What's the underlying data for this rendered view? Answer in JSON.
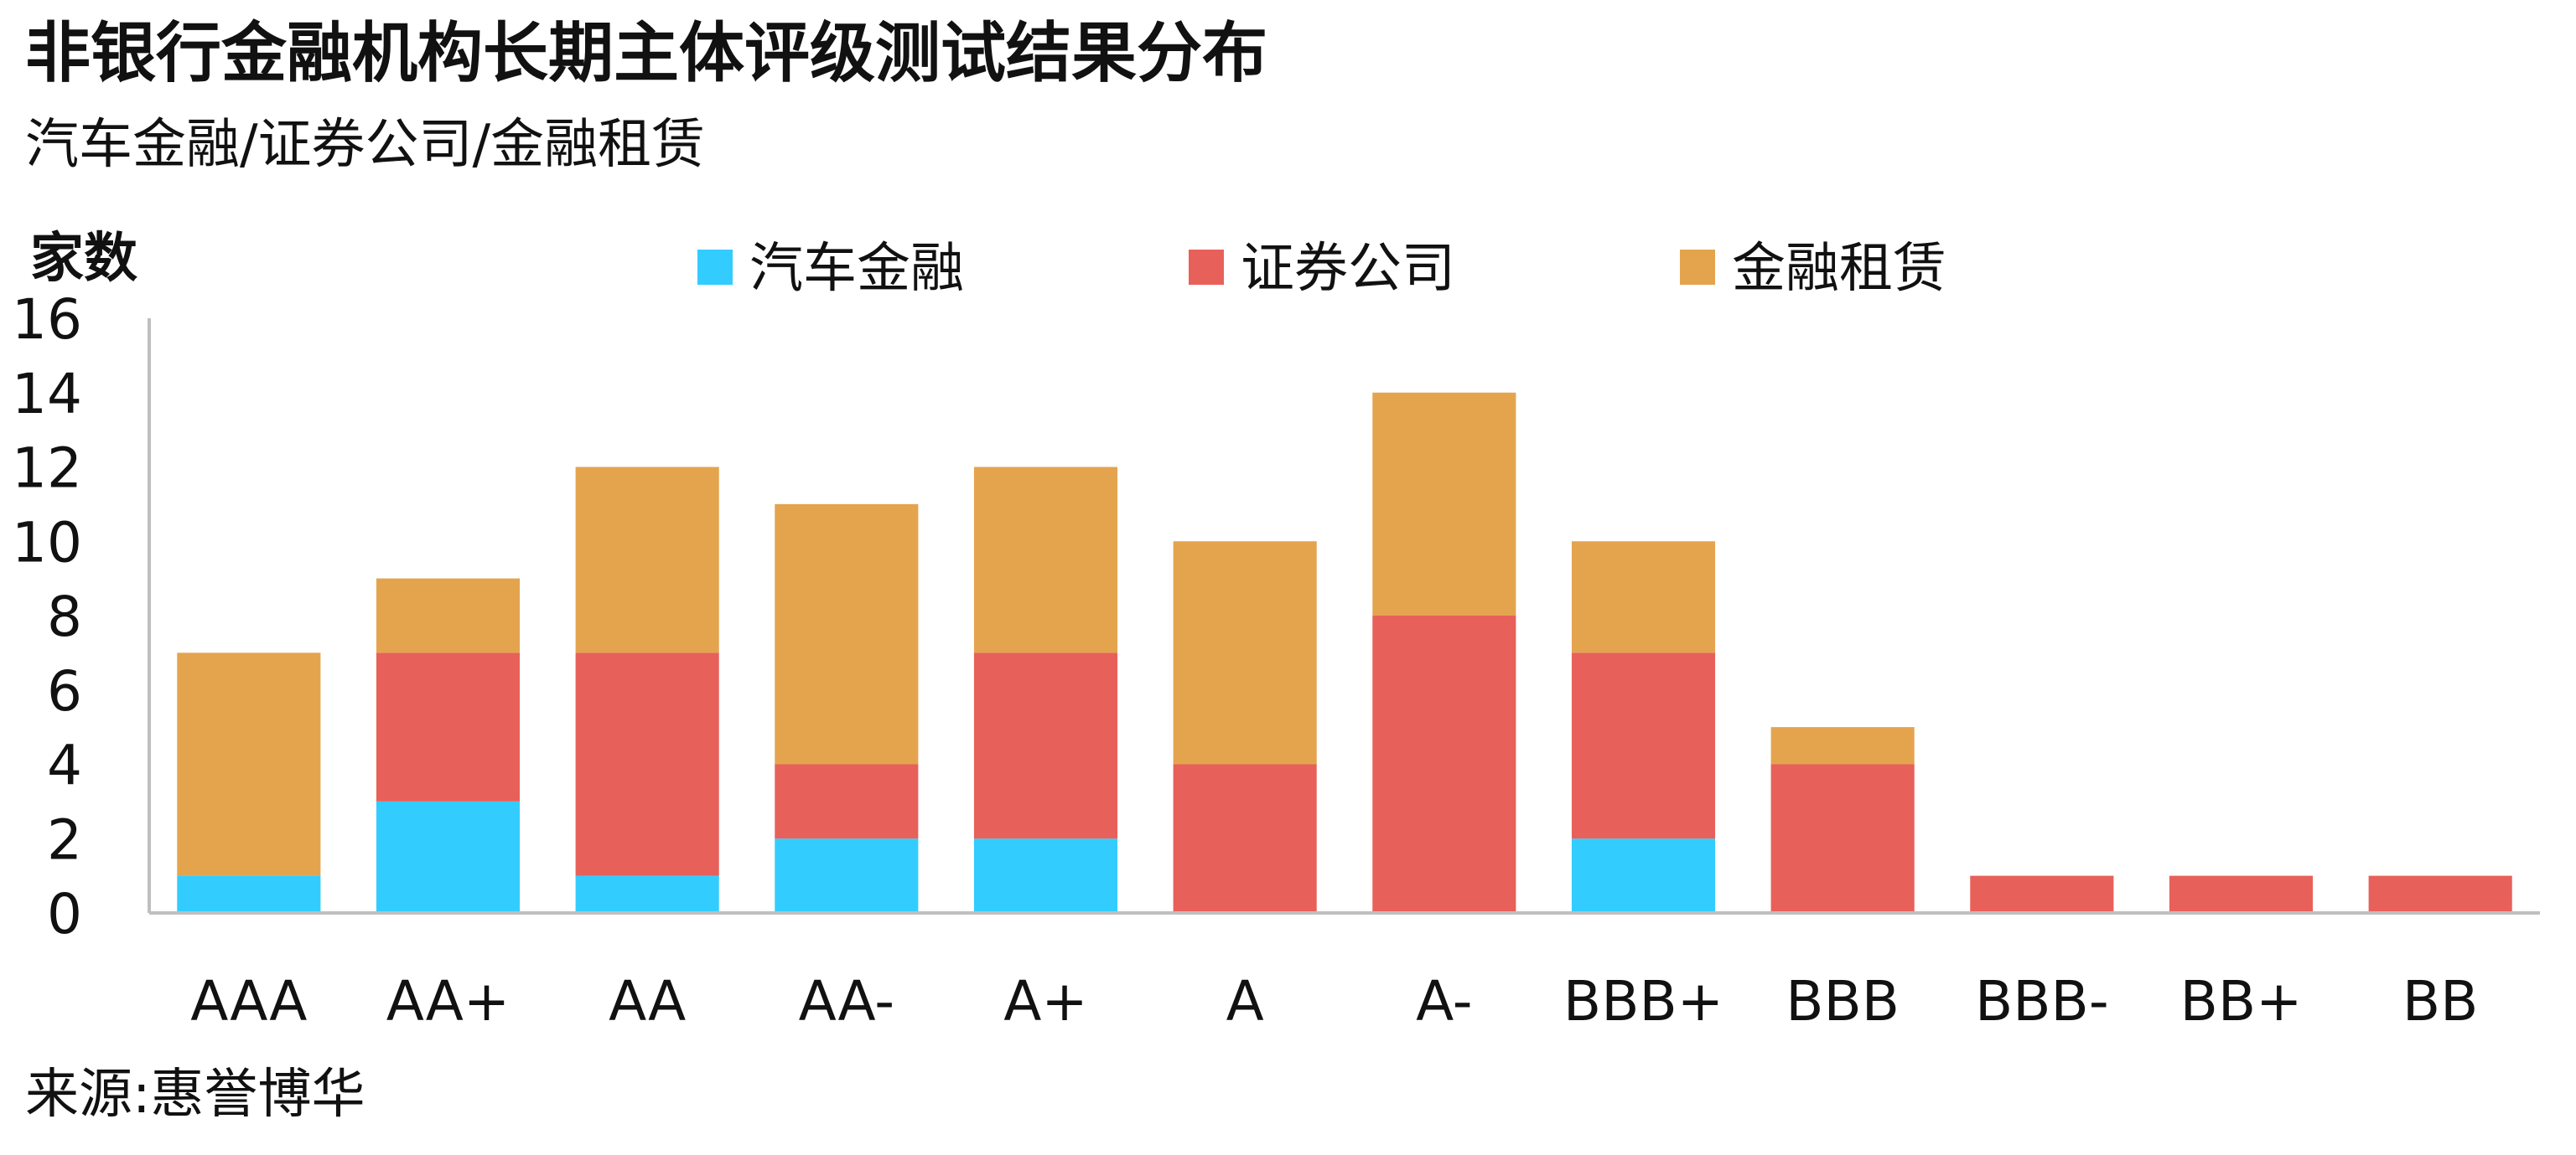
{
  "title": "非银行金融机构长期主体评级测试结果分布",
  "subtitle": "汽车金融/证券公司/金融租赁",
  "source": "来源:惠誉博华",
  "chart_data": {
    "type": "bar",
    "stacked": true,
    "ylabel": "家数",
    "ylim": [
      0,
      16
    ],
    "yticks": [
      0,
      2,
      4,
      6,
      8,
      10,
      12,
      14,
      16
    ],
    "grid": false,
    "legend_position": "top-center",
    "categories": [
      "AAA",
      "AA+",
      "AA",
      "AA-",
      "A+",
      "A",
      "A-",
      "BBB+",
      "BBB",
      "BBB-",
      "BB+",
      "BB"
    ],
    "series": [
      {
        "name": "汽车金融",
        "color": "#33ccff",
        "values": [
          1,
          3,
          1,
          2,
          2,
          0,
          0,
          2,
          0,
          0,
          0,
          0
        ]
      },
      {
        "name": "证券公司",
        "color": "#e8605a",
        "values": [
          0,
          4,
          6,
          2,
          5,
          4,
          8,
          5,
          4,
          1,
          1,
          1
        ]
      },
      {
        "name": "金融租赁",
        "color": "#e4a44e",
        "values": [
          6,
          2,
          5,
          7,
          5,
          6,
          6,
          3,
          1,
          0,
          0,
          0
        ]
      }
    ]
  }
}
